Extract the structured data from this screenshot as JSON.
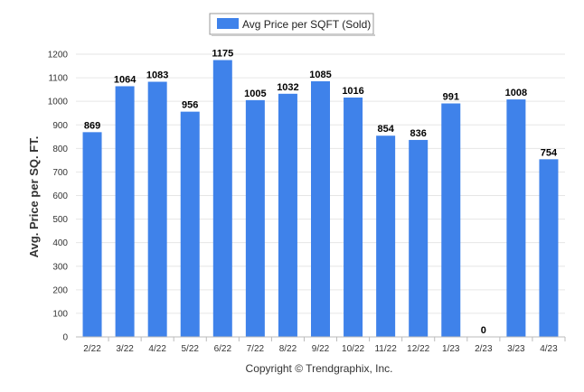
{
  "chart_data": {
    "type": "bar",
    "title": "",
    "xlabel": "",
    "ylabel": "Avg. Price per SQ. FT.",
    "ylim": [
      0,
      1200
    ],
    "yticks": [
      0,
      100,
      200,
      300,
      400,
      500,
      600,
      700,
      800,
      900,
      1000,
      1100,
      1200
    ],
    "grid": true,
    "legend_position": "top-center",
    "categories": [
      "2/22",
      "3/22",
      "4/22",
      "5/22",
      "6/22",
      "7/22",
      "8/22",
      "9/22",
      "10/22",
      "11/22",
      "12/22",
      "1/23",
      "2/23",
      "3/23",
      "4/23"
    ],
    "series": [
      {
        "name": "Avg Price per SQFT (Sold)",
        "color": "#3f82ea",
        "values": [
          869,
          1064,
          1083,
          956,
          1175,
          1005,
          1032,
          1085,
          1016,
          854,
          836,
          991,
          0,
          1008,
          754
        ]
      }
    ]
  },
  "footer": {
    "copyright": "Copyright © Trendgraphix, Inc."
  }
}
